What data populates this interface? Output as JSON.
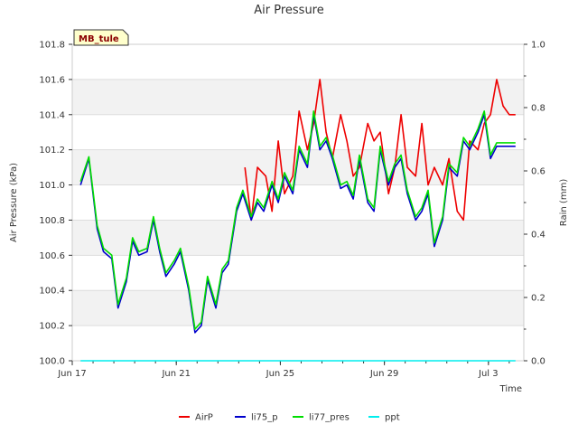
{
  "chart_data": {
    "type": "line",
    "title": "Air Pressure",
    "xlabel": "Time",
    "ylabel": "Air Pressure (kPa)",
    "y2label": "Rain (mm)",
    "xlim": [
      0,
      21.7
    ],
    "ylim": [
      100.0,
      101.8
    ],
    "y2lim": [
      0.0,
      1.0
    ],
    "x_tick_labels": [
      {
        "x": 0,
        "label": "Jun 17"
      },
      {
        "x": 5,
        "label": "Jun 21"
      },
      {
        "x": 10,
        "label": "Jun 25"
      },
      {
        "x": 15,
        "label": "Jun 29"
      },
      {
        "x": 20,
        "label": "Jul 3"
      }
    ],
    "y_ticks": [
      "100.0",
      "100.2",
      "100.4",
      "100.6",
      "100.8",
      "101.0",
      "101.2",
      "101.4",
      "101.6",
      "101.8"
    ],
    "y2_ticks": [
      "0.0",
      "0.2",
      "0.4",
      "0.6",
      "0.8",
      "1.0"
    ],
    "station_badge": "MB_tule",
    "series": [
      {
        "name": "AirP",
        "color": "#ee0000",
        "axis": "left",
        "x": [
          8.3,
          8.6,
          8.9,
          9.3,
          9.6,
          9.9,
          10.2,
          10.6,
          10.9,
          11.3,
          11.6,
          11.9,
          12.2,
          12.5,
          12.9,
          13.2,
          13.5,
          13.8,
          14.2,
          14.5,
          14.8,
          15.2,
          15.5,
          15.8,
          16.1,
          16.5,
          16.8,
          17.1,
          17.4,
          17.8,
          18.1,
          18.5,
          18.8,
          19.1,
          19.5,
          19.8,
          20.1,
          20.4,
          20.7,
          21.0,
          21.3
        ],
        "values": [
          101.1,
          100.8,
          101.1,
          101.05,
          100.85,
          101.25,
          100.95,
          101.05,
          101.42,
          101.2,
          101.35,
          101.6,
          101.3,
          101.15,
          101.4,
          101.25,
          101.05,
          101.1,
          101.35,
          101.25,
          101.3,
          100.95,
          101.1,
          101.4,
          101.1,
          101.05,
          101.35,
          101.0,
          101.1,
          101.0,
          101.15,
          100.85,
          100.8,
          101.25,
          101.2,
          101.35,
          101.4,
          101.6,
          101.45,
          101.4,
          101.4
        ]
      },
      {
        "name": "li75_p",
        "color": "#0000cc",
        "axis": "left",
        "x": [
          0.4,
          0.8,
          1.2,
          1.5,
          1.9,
          2.2,
          2.6,
          2.9,
          3.2,
          3.6,
          3.9,
          4.2,
          4.5,
          4.9,
          5.2,
          5.6,
          5.9,
          6.2,
          6.5,
          6.9,
          7.2,
          7.5,
          7.9,
          8.2,
          8.6,
          8.9,
          9.2,
          9.6,
          9.9,
          10.2,
          10.6,
          10.9,
          11.3,
          11.6,
          11.9,
          12.2,
          12.5,
          12.9,
          13.2,
          13.5,
          13.8,
          14.2,
          14.5,
          14.8,
          15.2,
          15.5,
          15.8,
          16.1,
          16.5,
          16.8,
          17.1,
          17.4,
          17.8,
          18.1,
          18.5,
          18.8,
          19.1,
          19.5,
          19.8,
          20.1,
          20.4,
          20.7,
          21.0,
          21.3
        ],
        "values": [
          101.0,
          101.15,
          100.75,
          100.62,
          100.58,
          100.3,
          100.45,
          100.68,
          100.6,
          100.62,
          100.8,
          100.62,
          100.48,
          100.55,
          100.62,
          100.4,
          100.16,
          100.2,
          100.46,
          100.3,
          100.5,
          100.55,
          100.85,
          100.95,
          100.8,
          100.9,
          100.85,
          101.0,
          100.9,
          101.05,
          100.95,
          101.2,
          101.1,
          101.4,
          101.2,
          101.25,
          101.15,
          100.98,
          101.0,
          100.92,
          101.15,
          100.9,
          100.85,
          101.2,
          101.0,
          101.1,
          101.15,
          100.95,
          100.8,
          100.85,
          100.95,
          100.65,
          100.8,
          101.1,
          101.05,
          101.25,
          101.2,
          101.3,
          101.4,
          101.15,
          101.22,
          101.22,
          101.22,
          101.22
        ]
      },
      {
        "name": "li77_pres",
        "color": "#00dd00",
        "axis": "left",
        "x": [
          0.4,
          0.8,
          1.2,
          1.5,
          1.9,
          2.2,
          2.6,
          2.9,
          3.2,
          3.6,
          3.9,
          4.2,
          4.5,
          4.9,
          5.2,
          5.6,
          5.9,
          6.2,
          6.5,
          6.9,
          7.2,
          7.5,
          7.9,
          8.2,
          8.6,
          8.9,
          9.2,
          9.6,
          9.9,
          10.2,
          10.6,
          10.9,
          11.3,
          11.6,
          11.9,
          12.2,
          12.5,
          12.9,
          13.2,
          13.5,
          13.8,
          14.2,
          14.5,
          14.8,
          15.2,
          15.5,
          15.8,
          16.1,
          16.5,
          16.8,
          17.1,
          17.4,
          17.8,
          18.1,
          18.5,
          18.8,
          19.1,
          19.5,
          19.8,
          20.1,
          20.4,
          20.7,
          21.0,
          21.3
        ],
        "values": [
          101.02,
          101.16,
          100.77,
          100.64,
          100.6,
          100.32,
          100.47,
          100.7,
          100.62,
          100.64,
          100.82,
          100.64,
          100.5,
          100.57,
          100.64,
          100.42,
          100.18,
          100.22,
          100.48,
          100.32,
          100.52,
          100.57,
          100.87,
          100.97,
          100.82,
          100.92,
          100.87,
          101.02,
          100.92,
          101.07,
          100.97,
          101.22,
          101.12,
          101.42,
          101.22,
          101.27,
          101.17,
          101.0,
          101.02,
          100.94,
          101.17,
          100.92,
          100.87,
          101.22,
          101.02,
          101.12,
          101.17,
          100.97,
          100.82,
          100.87,
          100.97,
          100.67,
          100.82,
          101.12,
          101.07,
          101.27,
          101.22,
          101.32,
          101.42,
          101.17,
          101.24,
          101.24,
          101.24,
          101.24
        ]
      },
      {
        "name": "ppt",
        "color": "#00eeee",
        "axis": "right",
        "x": [
          0.4,
          21.3
        ],
        "values": [
          0.0,
          0.0
        ]
      }
    ]
  }
}
